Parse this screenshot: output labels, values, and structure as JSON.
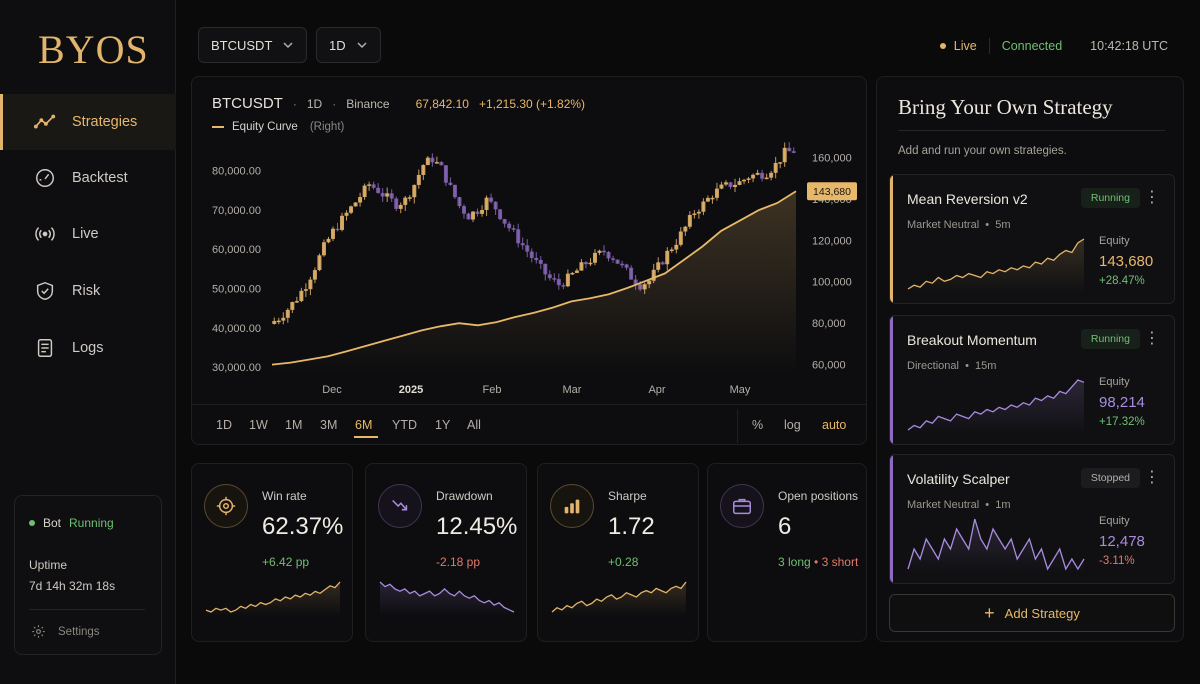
{
  "app": {
    "logo": "BYOS"
  },
  "sidebar": {
    "items": [
      {
        "label": "Strategies",
        "icon": "trend-line-icon",
        "active": true
      },
      {
        "label": "Backtest",
        "icon": "gauge-icon"
      },
      {
        "label": "Live",
        "icon": "broadcast-icon"
      },
      {
        "label": "Risk",
        "icon": "shield-icon"
      },
      {
        "label": "Logs",
        "icon": "document-icon"
      }
    ],
    "bot": {
      "label": "Bot",
      "status": "Running",
      "uptime_label": "Uptime",
      "uptime_value": "7d 14h 32m 18s",
      "settings_label": "Settings"
    }
  },
  "topbar": {
    "symbol": "BTCUSDT",
    "interval": "1D",
    "live_label": "Live",
    "connection": "Connected",
    "time": "10:42:18 UTC"
  },
  "chart": {
    "symbol": "BTCUSDT",
    "interval": "1D",
    "exchange": "Binance",
    "price": "67,842.10",
    "change": "+1,215.30 (+1.82%)",
    "legend_label": "Equity Curve",
    "legend_axis": "(Right)",
    "ranges": [
      "1D",
      "1W",
      "1M",
      "3M",
      "6M",
      "YTD",
      "1Y",
      "All"
    ],
    "active_range": "6M",
    "scale_options": [
      "%",
      "log",
      "auto"
    ],
    "active_scale": "auto",
    "colors": {
      "up": "#e3b46c",
      "down": "#8e6bc0",
      "equity": "#e8b86a"
    }
  },
  "chart_data": {
    "type": "line",
    "left_axis": {
      "ticks": [
        "80,000.00",
        "70,000.00",
        "60,000.00",
        "50,000.00",
        "40,000.00",
        "30,000.00"
      ],
      "range": [
        28000,
        86000
      ]
    },
    "right_axis": {
      "ticks": [
        "160,000",
        "140,000",
        "120,000",
        "100,000",
        "80,000",
        "60,000"
      ],
      "range": [
        55000,
        165000
      ]
    },
    "x_ticks": [
      "Dec",
      "2025",
      "Feb",
      "Mar",
      "Apr",
      "May"
    ],
    "price_series": [
      41000,
      42500,
      44800,
      47500,
      51000,
      55500,
      60500,
      64500,
      67500,
      70500,
      73500,
      76500,
      75000,
      73000,
      71500,
      72500,
      76500,
      81500,
      83000,
      80500,
      75500,
      71000,
      68500,
      70000,
      72500,
      70500,
      67000,
      64000,
      61000,
      58000,
      55000,
      52500,
      51000,
      52500,
      54500,
      56500,
      58000,
      59500,
      58000,
      55500,
      53000,
      51000,
      52000,
      55500,
      59000,
      62000,
      65500,
      69500,
      71500,
      74000,
      75500,
      76500,
      77000,
      78500,
      79000,
      79500,
      81500,
      84500,
      85000
    ],
    "equity_series": [
      60000,
      61000,
      62500,
      64000,
      66500,
      69000,
      71500,
      74000,
      76500,
      78500,
      80000,
      79000,
      80500,
      83000,
      85000,
      87500,
      90500,
      92000,
      94000,
      97000,
      100500,
      104000,
      110500,
      117000,
      124500,
      129500,
      134500,
      138000,
      143680
    ],
    "last_equity_label": "143,680",
    "series": [
      {
        "name": "Equity Curve",
        "axis": "right"
      }
    ]
  },
  "metrics": [
    {
      "label": "Win rate",
      "value": "62.37%",
      "change": "+6.42 pp",
      "tone": "green",
      "icon": "target-icon",
      "spark": [
        5,
        4,
        6,
        5,
        6,
        4,
        5,
        7,
        6,
        8,
        7,
        9,
        8,
        9,
        11,
        10,
        12,
        11,
        13,
        12,
        14,
        13,
        15,
        14,
        16,
        18,
        17,
        20
      ]
    },
    {
      "label": "Drawdown",
      "value": "12.45%",
      "change": "-2.18 pp",
      "tone": "red",
      "icon": "trend-down-icon",
      "spark": [
        18,
        16,
        17,
        15,
        14,
        15,
        13,
        14,
        12,
        13,
        14,
        12,
        13,
        15,
        13,
        12,
        14,
        12,
        11,
        12,
        10,
        9,
        10,
        8,
        9,
        7,
        6,
        5
      ]
    },
    {
      "label": "Sharpe",
      "value": "1.72",
      "change": "+0.28",
      "tone": "green",
      "icon": "bars-icon",
      "spark": [
        4,
        6,
        5,
        7,
        6,
        8,
        9,
        7,
        8,
        10,
        9,
        11,
        12,
        10,
        11,
        13,
        12,
        11,
        13,
        14,
        13,
        15,
        14,
        13,
        15,
        16,
        15,
        18
      ]
    },
    {
      "label": "Open positions",
      "value": "6",
      "long": "3 long",
      "short": "3 short",
      "icon": "briefcase-icon"
    }
  ],
  "strategies_panel": {
    "title": "Bring Your Own Strategy",
    "subtitle": "Add and run your own strategies.",
    "equity_label": "Equity",
    "add_label": "Add Strategy",
    "strategies": [
      {
        "name": "Mean Reversion v2",
        "type": "Market Neutral",
        "timeframe": "5m",
        "status": "Running",
        "equity": "143,680",
        "change": "+28.47%",
        "color": "#e3b46c",
        "spark": [
          6,
          8,
          7,
          10,
          9,
          12,
          10,
          11,
          13,
          12,
          14,
          13,
          12,
          15,
          14,
          16,
          15,
          17,
          16,
          18,
          17,
          20,
          19,
          22,
          21,
          24,
          26,
          25,
          30,
          32
        ]
      },
      {
        "name": "Breakout Momentum",
        "type": "Directional",
        "timeframe": "15m",
        "status": "Running",
        "equity": "98,214",
        "change": "+17.32%",
        "color": "#a98be0",
        "spark": [
          5,
          7,
          6,
          9,
          8,
          11,
          10,
          9,
          12,
          11,
          10,
          13,
          12,
          14,
          13,
          15,
          14,
          16,
          15,
          17,
          16,
          19,
          18,
          20,
          19,
          22,
          21,
          24,
          27,
          26
        ]
      },
      {
        "name": "Volatility Scalper",
        "type": "Market Neutral",
        "timeframe": "1m",
        "status": "Stopped",
        "equity": "12,478",
        "change": "-3.11%",
        "color": "#a98be0",
        "spark": [
          10,
          12,
          11,
          13,
          12,
          11,
          13,
          12,
          14,
          13,
          12,
          15,
          13,
          12,
          14,
          13,
          12,
          13,
          11,
          12,
          13,
          11,
          12,
          10,
          11,
          12,
          10,
          11,
          10,
          11
        ]
      }
    ]
  }
}
